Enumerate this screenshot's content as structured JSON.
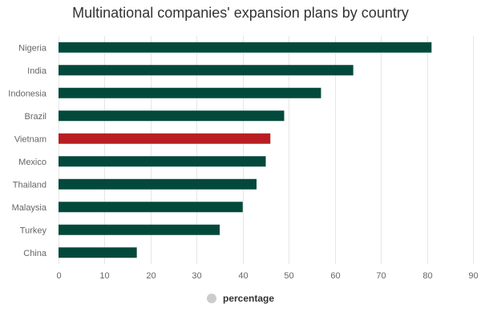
{
  "chart_data": {
    "type": "bar",
    "orientation": "horizontal",
    "title": "Multinational companies' expansion plans by country",
    "xlabel": "",
    "ylabel": "",
    "categories": [
      "Nigeria",
      "India",
      "Indonesia",
      "Brazil",
      "Vietnam",
      "Mexico",
      "Thailand",
      "Malaysia",
      "Turkey",
      "China"
    ],
    "series": [
      {
        "name": "percentage",
        "values": [
          81,
          64,
          57,
          49,
          46,
          45,
          43,
          40,
          35,
          17
        ]
      }
    ],
    "xlim": [
      0,
      90
    ],
    "xticks": [
      "0",
      "10",
      "20",
      "30",
      "40",
      "50",
      "60",
      "70",
      "80",
      "90"
    ],
    "grid": true,
    "legend_position": "bottom-center",
    "colors": {
      "bar": "#03493b",
      "highlight": "#b81e22",
      "highlight_category": "Vietnam",
      "grid": "#e6e6e6",
      "legend_marker": "#cccccc",
      "text": "#333333",
      "tick_text": "#666666"
    }
  }
}
